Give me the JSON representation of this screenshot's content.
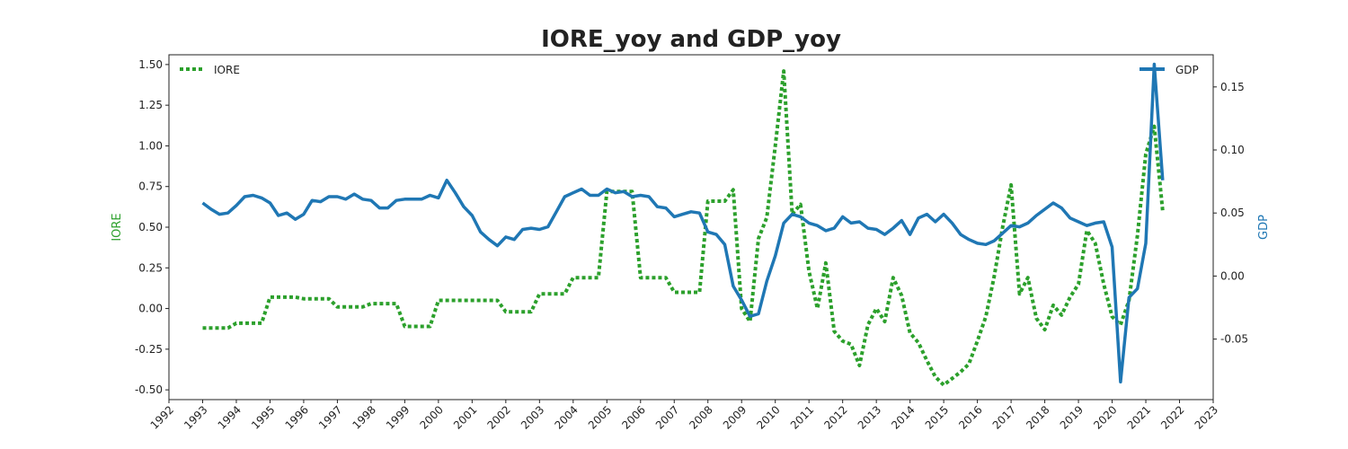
{
  "chart_data": {
    "type": "line",
    "title": "IORE_yoy and GDP_yoy",
    "xlabel": "",
    "xlim": [
      1992,
      2023
    ],
    "x_ticks": [
      "1992",
      "1993",
      "1994",
      "1995",
      "1996",
      "1997",
      "1998",
      "1999",
      "2000",
      "2001",
      "2002",
      "2003",
      "2004",
      "2005",
      "2006",
      "2007",
      "2008",
      "2009",
      "2010",
      "2011",
      "2012",
      "2013",
      "2014",
      "2015",
      "2016",
      "2017",
      "2018",
      "2019",
      "2020",
      "2021",
      "2022",
      "2023"
    ],
    "grid": false,
    "left_axis": {
      "label": "IORE",
      "color": "#2ca02c",
      "ylim": [
        -0.56,
        1.56
      ],
      "ticks": [
        "-0.50",
        "-0.25",
        "0.00",
        "0.25",
        "0.50",
        "0.75",
        "1.00",
        "1.25",
        "1.50"
      ]
    },
    "right_axis": {
      "label": "GDP",
      "color": "#1f77b4",
      "ylim": [
        -0.098,
        0.1755
      ],
      "ticks": [
        "-0.05",
        "0.00",
        "0.05",
        "0.10",
        "0.15"
      ]
    },
    "series": [
      {
        "name": "IORE",
        "axis": "left",
        "color": "#2ca02c",
        "style": "dotted",
        "points": [
          [
            1993.0,
            -0.12
          ],
          [
            1993.25,
            -0.12
          ],
          [
            1993.5,
            -0.12
          ],
          [
            1993.75,
            -0.12
          ],
          [
            1994.0,
            -0.09
          ],
          [
            1994.25,
            -0.09
          ],
          [
            1994.5,
            -0.09
          ],
          [
            1994.75,
            -0.09
          ],
          [
            1995.0,
            0.07
          ],
          [
            1995.25,
            0.07
          ],
          [
            1995.5,
            0.07
          ],
          [
            1995.75,
            0.07
          ],
          [
            1996.0,
            0.06
          ],
          [
            1996.25,
            0.06
          ],
          [
            1996.5,
            0.06
          ],
          [
            1996.75,
            0.06
          ],
          [
            1997.0,
            0.01
          ],
          [
            1997.25,
            0.01
          ],
          [
            1997.5,
            0.01
          ],
          [
            1997.75,
            0.01
          ],
          [
            1998.0,
            0.03
          ],
          [
            1998.25,
            0.03
          ],
          [
            1998.5,
            0.03
          ],
          [
            1998.75,
            0.03
          ],
          [
            1999.0,
            -0.11
          ],
          [
            1999.25,
            -0.11
          ],
          [
            1999.5,
            -0.11
          ],
          [
            1999.75,
            -0.11
          ],
          [
            2000.0,
            0.05
          ],
          [
            2000.25,
            0.05
          ],
          [
            2000.5,
            0.05
          ],
          [
            2000.75,
            0.05
          ],
          [
            2001.0,
            0.05
          ],
          [
            2001.25,
            0.05
          ],
          [
            2001.5,
            0.05
          ],
          [
            2001.75,
            0.05
          ],
          [
            2002.0,
            -0.02
          ],
          [
            2002.25,
            -0.02
          ],
          [
            2002.5,
            -0.02
          ],
          [
            2002.75,
            -0.02
          ],
          [
            2003.0,
            0.09
          ],
          [
            2003.25,
            0.09
          ],
          [
            2003.5,
            0.09
          ],
          [
            2003.75,
            0.09
          ],
          [
            2004.0,
            0.19
          ],
          [
            2004.25,
            0.19
          ],
          [
            2004.5,
            0.19
          ],
          [
            2004.75,
            0.19
          ],
          [
            2005.0,
            0.72
          ],
          [
            2005.25,
            0.72
          ],
          [
            2005.5,
            0.72
          ],
          [
            2005.75,
            0.72
          ],
          [
            2006.0,
            0.19
          ],
          [
            2006.25,
            0.19
          ],
          [
            2006.5,
            0.19
          ],
          [
            2006.75,
            0.19
          ],
          [
            2007.0,
            0.1
          ],
          [
            2007.25,
            0.1
          ],
          [
            2007.5,
            0.1
          ],
          [
            2007.75,
            0.1
          ],
          [
            2008.0,
            0.66
          ],
          [
            2008.25,
            0.66
          ],
          [
            2008.5,
            0.66
          ],
          [
            2008.75,
            0.73
          ],
          [
            2009.0,
            0.0
          ],
          [
            2009.25,
            -0.08
          ],
          [
            2009.5,
            0.43
          ],
          [
            2009.75,
            0.56
          ],
          [
            2010.0,
            1.0
          ],
          [
            2010.25,
            1.46
          ],
          [
            2010.5,
            0.58
          ],
          [
            2010.75,
            0.64
          ],
          [
            2011.0,
            0.23
          ],
          [
            2011.25,
            0.0
          ],
          [
            2011.5,
            0.28
          ],
          [
            2011.75,
            -0.14
          ],
          [
            2012.0,
            -0.2
          ],
          [
            2012.25,
            -0.22
          ],
          [
            2012.5,
            -0.35
          ],
          [
            2012.75,
            -0.1
          ],
          [
            2013.0,
            0.0
          ],
          [
            2013.25,
            -0.08
          ],
          [
            2013.5,
            0.19
          ],
          [
            2013.75,
            0.08
          ],
          [
            2014.0,
            -0.15
          ],
          [
            2014.25,
            -0.21
          ],
          [
            2014.5,
            -0.32
          ],
          [
            2014.75,
            -0.42
          ],
          [
            2015.0,
            -0.47
          ],
          [
            2015.25,
            -0.43
          ],
          [
            2015.5,
            -0.39
          ],
          [
            2015.75,
            -0.34
          ],
          [
            2016.0,
            -0.2
          ],
          [
            2016.25,
            -0.05
          ],
          [
            2016.5,
            0.2
          ],
          [
            2016.75,
            0.5
          ],
          [
            2017.0,
            0.76
          ],
          [
            2017.25,
            0.09
          ],
          [
            2017.5,
            0.19
          ],
          [
            2017.75,
            -0.06
          ],
          [
            2018.0,
            -0.13
          ],
          [
            2018.25,
            0.02
          ],
          [
            2018.5,
            -0.04
          ],
          [
            2018.75,
            0.07
          ],
          [
            2019.0,
            0.15
          ],
          [
            2019.25,
            0.48
          ],
          [
            2019.5,
            0.4
          ],
          [
            2019.75,
            0.15
          ],
          [
            2020.0,
            -0.05
          ],
          [
            2020.25,
            -0.1
          ],
          [
            2020.5,
            0.05
          ],
          [
            2020.75,
            0.45
          ],
          [
            2021.0,
            0.95
          ],
          [
            2021.25,
            1.12
          ],
          [
            2021.5,
            0.6
          ]
        ]
      },
      {
        "name": "GDP",
        "axis": "right",
        "color": "#1f77b4",
        "style": "solid",
        "points": [
          [
            1993.0,
            0.058
          ],
          [
            1993.25,
            0.053
          ],
          [
            1993.5,
            0.049
          ],
          [
            1993.75,
            0.05
          ],
          [
            1994.0,
            0.056
          ],
          [
            1994.25,
            0.063
          ],
          [
            1994.5,
            0.064
          ],
          [
            1994.75,
            0.062
          ],
          [
            1995.0,
            0.058
          ],
          [
            1995.25,
            0.048
          ],
          [
            1995.5,
            0.05
          ],
          [
            1995.75,
            0.045
          ],
          [
            1996.0,
            0.049
          ],
          [
            1996.25,
            0.06
          ],
          [
            1996.5,
            0.059
          ],
          [
            1996.75,
            0.063
          ],
          [
            1997.0,
            0.063
          ],
          [
            1997.25,
            0.061
          ],
          [
            1997.5,
            0.065
          ],
          [
            1997.75,
            0.061
          ],
          [
            1998.0,
            0.06
          ],
          [
            1998.25,
            0.054
          ],
          [
            1998.5,
            0.054
          ],
          [
            1998.75,
            0.06
          ],
          [
            1999.0,
            0.061
          ],
          [
            1999.25,
            0.061
          ],
          [
            1999.5,
            0.061
          ],
          [
            1999.75,
            0.064
          ],
          [
            2000.0,
            0.062
          ],
          [
            2000.25,
            0.076
          ],
          [
            2000.5,
            0.066
          ],
          [
            2000.75,
            0.055
          ],
          [
            2001.0,
            0.048
          ],
          [
            2001.25,
            0.035
          ],
          [
            2001.5,
            0.029
          ],
          [
            2001.75,
            0.024
          ],
          [
            2002.0,
            0.031
          ],
          [
            2002.25,
            0.029
          ],
          [
            2002.5,
            0.037
          ],
          [
            2002.75,
            0.038
          ],
          [
            2003.0,
            0.037
          ],
          [
            2003.25,
            0.039
          ],
          [
            2003.5,
            0.051
          ],
          [
            2003.75,
            0.063
          ],
          [
            2004.0,
            0.066
          ],
          [
            2004.25,
            0.069
          ],
          [
            2004.5,
            0.064
          ],
          [
            2004.75,
            0.064
          ],
          [
            2005.0,
            0.069
          ],
          [
            2005.25,
            0.066
          ],
          [
            2005.5,
            0.067
          ],
          [
            2005.75,
            0.063
          ],
          [
            2006.0,
            0.064
          ],
          [
            2006.25,
            0.063
          ],
          [
            2006.5,
            0.055
          ],
          [
            2006.75,
            0.054
          ],
          [
            2007.0,
            0.047
          ],
          [
            2007.25,
            0.049
          ],
          [
            2007.5,
            0.051
          ],
          [
            2007.75,
            0.05
          ],
          [
            2008.0,
            0.035
          ],
          [
            2008.25,
            0.033
          ],
          [
            2008.5,
            0.025
          ],
          [
            2008.75,
            -0.008
          ],
          [
            2009.0,
            -0.019
          ],
          [
            2009.25,
            -0.032
          ],
          [
            2009.5,
            -0.03
          ],
          [
            2009.75,
            -0.004
          ],
          [
            2010.0,
            0.016
          ],
          [
            2010.25,
            0.042
          ],
          [
            2010.5,
            0.049
          ],
          [
            2010.75,
            0.047
          ],
          [
            2011.0,
            0.042
          ],
          [
            2011.25,
            0.04
          ],
          [
            2011.5,
            0.036
          ],
          [
            2011.75,
            0.038
          ],
          [
            2012.0,
            0.047
          ],
          [
            2012.25,
            0.042
          ],
          [
            2012.5,
            0.043
          ],
          [
            2012.75,
            0.038
          ],
          [
            2013.0,
            0.037
          ],
          [
            2013.25,
            0.033
          ],
          [
            2013.5,
            0.038
          ],
          [
            2013.75,
            0.044
          ],
          [
            2014.0,
            0.033
          ],
          [
            2014.25,
            0.046
          ],
          [
            2014.5,
            0.049
          ],
          [
            2014.75,
            0.043
          ],
          [
            2015.0,
            0.049
          ],
          [
            2015.25,
            0.042
          ],
          [
            2015.5,
            0.033
          ],
          [
            2015.75,
            0.029
          ],
          [
            2016.0,
            0.026
          ],
          [
            2016.25,
            0.025
          ],
          [
            2016.5,
            0.028
          ],
          [
            2016.75,
            0.034
          ],
          [
            2017.0,
            0.04
          ],
          [
            2017.25,
            0.039
          ],
          [
            2017.5,
            0.042
          ],
          [
            2017.75,
            0.048
          ],
          [
            2018.0,
            0.053
          ],
          [
            2018.25,
            0.058
          ],
          [
            2018.5,
            0.054
          ],
          [
            2018.75,
            0.046
          ],
          [
            2019.0,
            0.043
          ],
          [
            2019.25,
            0.04
          ],
          [
            2019.5,
            0.042
          ],
          [
            2019.75,
            0.043
          ],
          [
            2020.0,
            0.023
          ],
          [
            2020.25,
            -0.084
          ],
          [
            2020.5,
            -0.017
          ],
          [
            2020.75,
            -0.01
          ],
          [
            2021.0,
            0.026
          ],
          [
            2021.25,
            0.168
          ],
          [
            2021.5,
            0.076
          ]
        ]
      }
    ],
    "legends": [
      {
        "name": "IORE",
        "position": "upper-left"
      },
      {
        "name": "GDP",
        "position": "upper-right"
      }
    ]
  }
}
